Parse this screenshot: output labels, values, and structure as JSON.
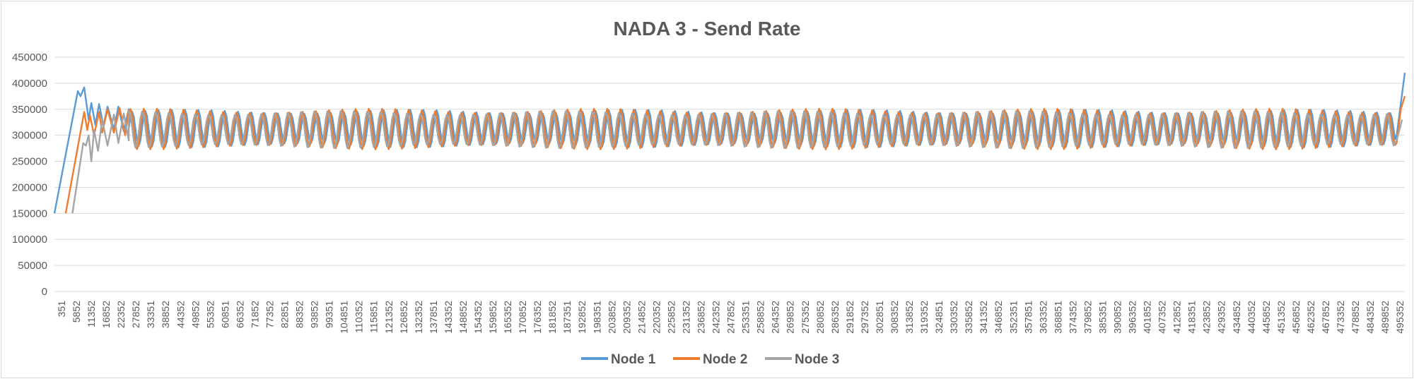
{
  "chart_data": {
    "type": "line",
    "title": "NADA 3 - Send Rate",
    "ylim": [
      0,
      450000
    ],
    "yticks": [
      0,
      50000,
      100000,
      150000,
      200000,
      250000,
      300000,
      350000,
      400000,
      450000
    ],
    "xlim": [
      351,
      500000
    ],
    "xtick_labels": [
      "351",
      "5852",
      "11352",
      "16852",
      "22352",
      "27852",
      "33351",
      "38852",
      "44352",
      "49852",
      "55352",
      "60851",
      "66352",
      "71852",
      "77352",
      "82851",
      "88352",
      "93852",
      "99351",
      "104851",
      "110352",
      "115851",
      "121352",
      "126852",
      "132352",
      "137851",
      "143352",
      "148852",
      "154352",
      "159852",
      "165352",
      "170852",
      "176352",
      "181852",
      "187351",
      "192852",
      "198351",
      "203852",
      "209352",
      "214852",
      "220352",
      "225852",
      "231352",
      "236852",
      "242352",
      "247852",
      "253351",
      "258852",
      "264352",
      "269852",
      "275352",
      "280852",
      "286352",
      "291852",
      "297352",
      "302851",
      "308352",
      "313852",
      "319352",
      "324851",
      "330352",
      "335852",
      "341352",
      "346852",
      "352351",
      "357851",
      "363352",
      "368851",
      "374352",
      "379852",
      "385351",
      "390852",
      "396352",
      "401852",
      "407352",
      "412852",
      "418351",
      "423852",
      "429352",
      "434852",
      "440352",
      "445852",
      "451352",
      "456852",
      "462352",
      "467852",
      "473352",
      "478852",
      "484352",
      "489852",
      "495352"
    ],
    "grid": "horizontal",
    "legend_position": "bottom",
    "series": [
      {
        "name": "Node 1",
        "color": "#5b9bd5",
        "ramp": [
          [
            351,
            150000
          ],
          [
            9000,
            385000
          ]
        ],
        "points": [
          [
            9000,
            385000
          ],
          [
            10000,
            375000
          ],
          [
            11352,
            392000
          ],
          [
            13000,
            330000
          ],
          [
            14000,
            362000
          ],
          [
            15500,
            320000
          ],
          [
            16852,
            360000
          ],
          [
            18500,
            318000
          ],
          [
            20000,
            355000
          ],
          [
            22352,
            312000
          ],
          [
            24000,
            355000
          ],
          [
            26000,
            308000
          ],
          [
            27852,
            350000
          ]
        ],
        "oscillation": {
          "x_start": 27852,
          "x_end": 497000,
          "period": 4900,
          "min": 278000,
          "max": 348000
        },
        "tail": [
          [
            497000,
            300000
          ],
          [
            500000,
            420000
          ]
        ]
      },
      {
        "name": "Node 2",
        "color": "#ed7d31",
        "ramp": [
          [
            4500,
            150000
          ],
          [
            11352,
            345000
          ]
        ],
        "points": [
          [
            11352,
            345000
          ],
          [
            12500,
            310000
          ],
          [
            13500,
            338000
          ],
          [
            15000,
            300000
          ],
          [
            16852,
            345000
          ],
          [
            18000,
            305000
          ],
          [
            20000,
            350000
          ],
          [
            22352,
            305000
          ],
          [
            24500,
            352000
          ],
          [
            26500,
            300000
          ],
          [
            27852,
            348000
          ]
        ],
        "oscillation": {
          "x_start": 27852,
          "x_end": 497000,
          "period": 4900,
          "min": 274000,
          "max": 350000
        },
        "tail": [
          [
            497000,
            285000
          ],
          [
            498500,
            350000
          ],
          [
            500000,
            375000
          ]
        ]
      },
      {
        "name": "Node 3",
        "color": "#a5a5a5",
        "ramp": [
          [
            7000,
            150000
          ],
          [
            11000,
            285000
          ]
        ],
        "points": [
          [
            11000,
            285000
          ],
          [
            12000,
            280000
          ],
          [
            13000,
            300000
          ],
          [
            14000,
            250000
          ],
          [
            15000,
            310000
          ],
          [
            16500,
            270000
          ],
          [
            18000,
            330000
          ],
          [
            20000,
            280000
          ],
          [
            22352,
            340000
          ],
          [
            24000,
            285000
          ],
          [
            26000,
            342000
          ],
          [
            27852,
            290000
          ]
        ],
        "oscillation": {
          "x_start": 27852,
          "x_end": 497000,
          "period": 4900,
          "min": 276000,
          "max": 346000
        },
        "tail": [
          [
            497000,
            290000
          ],
          [
            499000,
            330000
          ]
        ]
      }
    ]
  }
}
